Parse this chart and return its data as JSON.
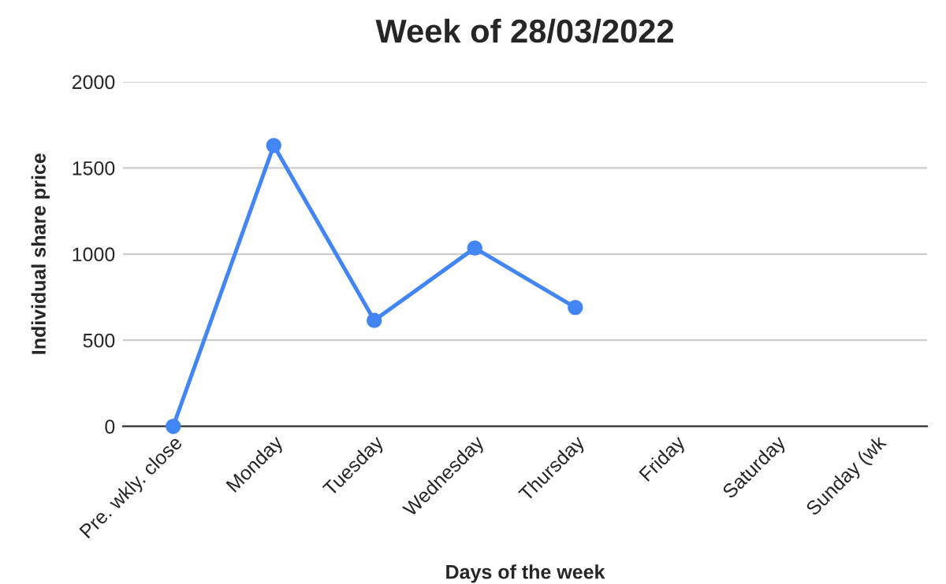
{
  "chart_data": {
    "type": "line",
    "title": "Week of 28/03/2022",
    "xlabel": "Days of the week",
    "ylabel": "Individual share price",
    "categories": [
      "Pre. wkly. close",
      "Monday",
      "Tuesday",
      "Wednesday",
      "Thursday",
      "Friday",
      "Saturday",
      "Sunday (wk"
    ],
    "series": [
      {
        "color": "#4285f4",
        "values": [
          0,
          1630,
          615,
          1035,
          690,
          null,
          null,
          null
        ]
      }
    ],
    "ylim": [
      0,
      2000
    ],
    "yticks": [
      0,
      500,
      1000,
      1500,
      2000
    ],
    "grid": "y",
    "marker": "circle",
    "line_style": "solid"
  }
}
